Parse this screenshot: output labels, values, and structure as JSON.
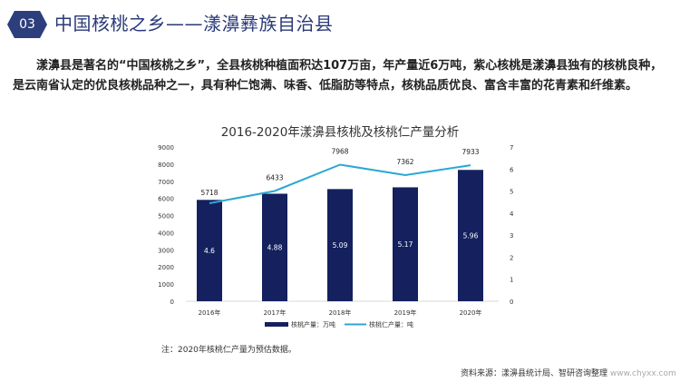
{
  "header": {
    "number": "03",
    "title": "中国核桃之乡——漾濞彝族自治县"
  },
  "intro": "漾濞县是著名的“中国核桃之乡”，全县核桃种植面积达107万亩，年产量近6万吨，紫心核桃是漾濞县独有的核桃良种，是云南省认定的优良核桃品种之一，具有种仁饱满、味香、低脂肪等特点，核桃品质优良、富含丰富的花青素和纤维素。",
  "chart_data": {
    "type": "bar+line",
    "title": "2016-2020年漾濞县核桃及核桃仁产量分析",
    "categories": [
      "2016年",
      "2017年",
      "2018年",
      "2019年",
      "2020年"
    ],
    "series": [
      {
        "name": "核桃产量：万吨",
        "type": "bar",
        "axis": "right",
        "values": [
          4.6,
          4.88,
          5.09,
          5.17,
          5.96
        ],
        "color": "#14215e"
      },
      {
        "name": "核桃仁产量：吨",
        "type": "line",
        "axis": "left",
        "values": [
          5718,
          6433,
          7968,
          7362,
          7933
        ],
        "color": "#2aa7d4"
      }
    ],
    "left_axis": {
      "ylim": [
        0,
        9000
      ],
      "ticks": [
        "0",
        "1000",
        "2000",
        "3000",
        "4000",
        "5000",
        "6000",
        "7000",
        "8000",
        "9000"
      ]
    },
    "right_axis": {
      "ylim": [
        0,
        7
      ],
      "ticks": [
        "0",
        "1",
        "2",
        "3",
        "4",
        "5",
        "6",
        "7"
      ]
    },
    "legend": "bottom"
  },
  "note": "注：2020年核桃仁产量为预估数据。",
  "source": "资料来源：漾濞县统计局、智研咨询整理",
  "website": "www.chyxx.com"
}
